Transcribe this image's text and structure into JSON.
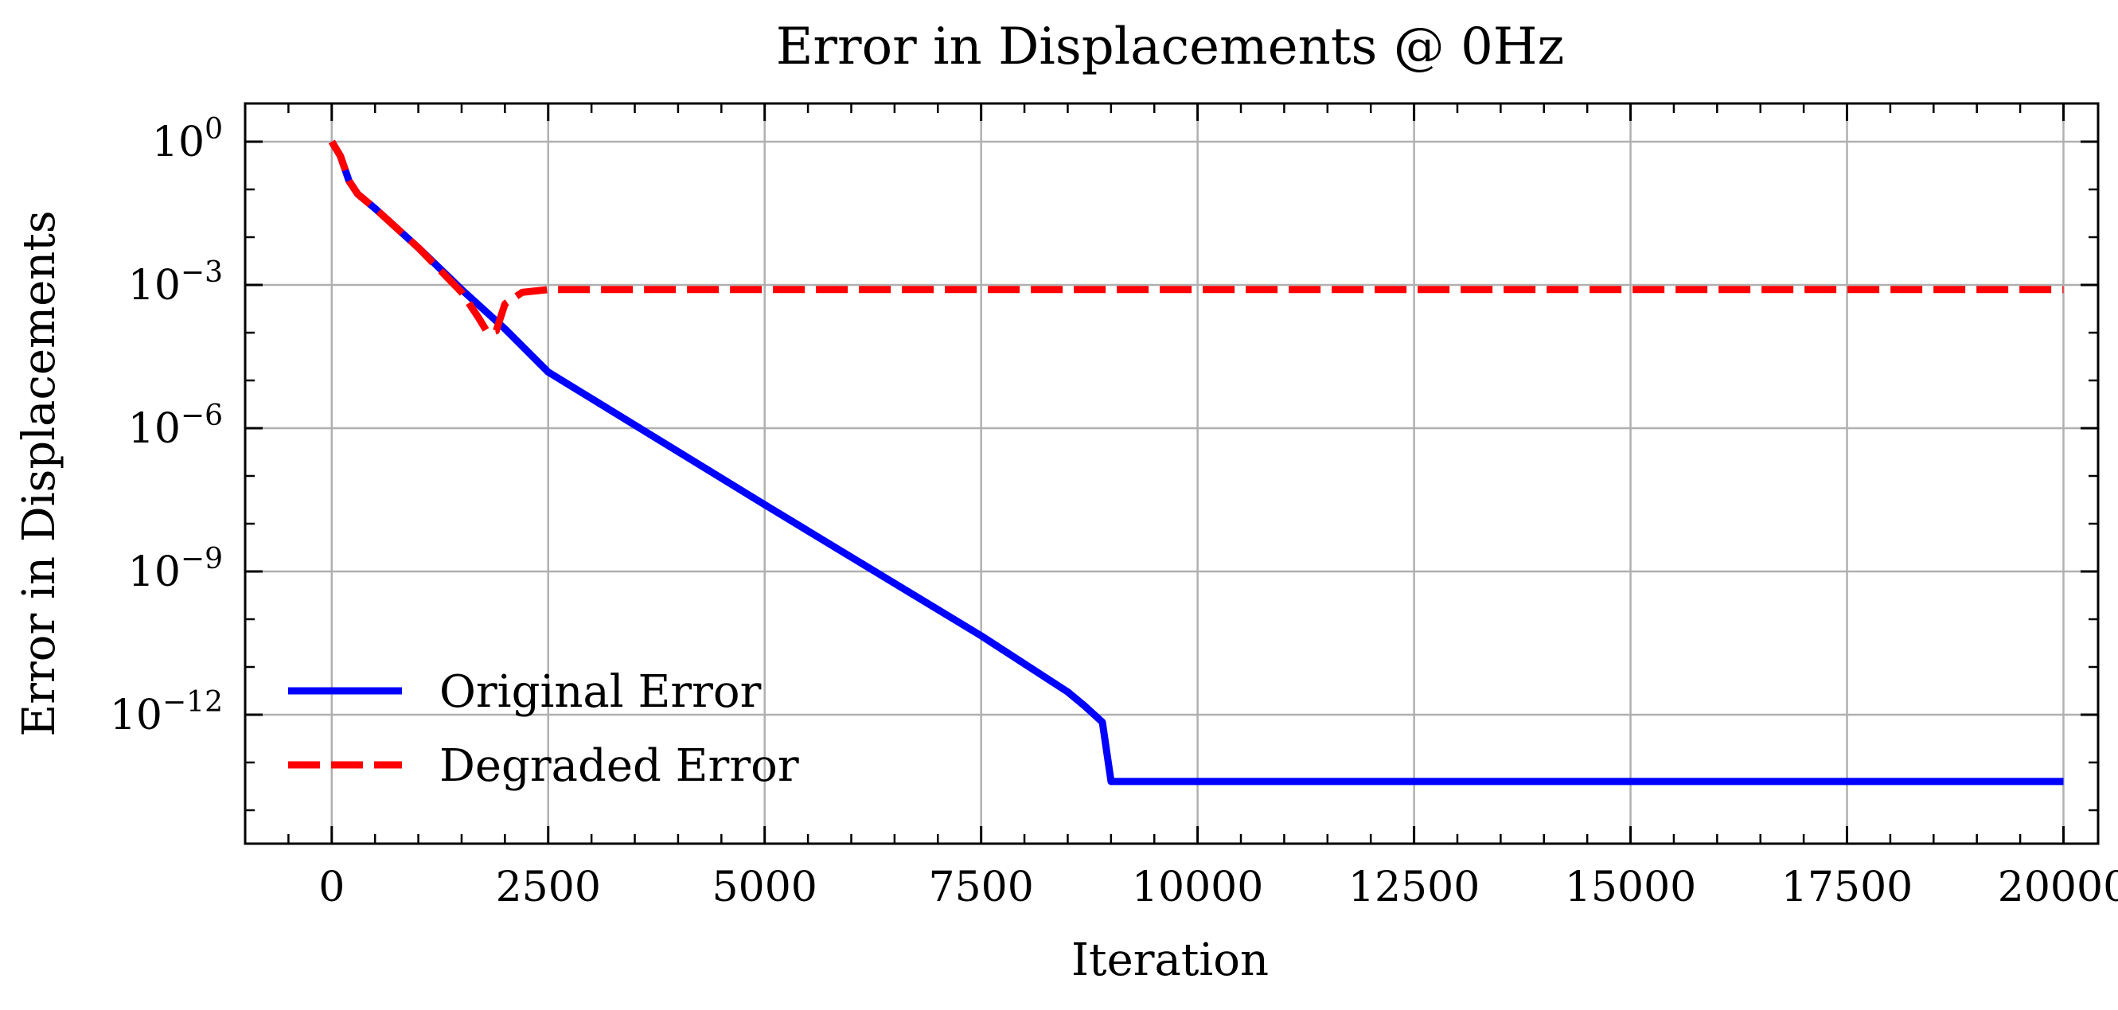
{
  "chart_data": {
    "type": "line",
    "title": "Error in Displacements @ 0Hz",
    "xlabel": "Iteration",
    "ylabel": "Error in Displacements",
    "xlim": [
      -1000,
      20400
    ],
    "ylim_log10": [
      -14.7,
      0.8
    ],
    "yscale": "log",
    "grid": true,
    "legend_position": "lower-left",
    "x_ticks": [
      0,
      2500,
      5000,
      7500,
      10000,
      12500,
      15000,
      17500,
      20000
    ],
    "x_tick_labels": [
      "0",
      "2500",
      "5000",
      "7500",
      "10000",
      "12500",
      "15000",
      "17500",
      "20000"
    ],
    "y_ticks_log10": [
      0,
      -3,
      -6,
      -9,
      -12
    ],
    "y_tick_labels": [
      {
        "base": "10",
        "exp": "0"
      },
      {
        "base": "10",
        "exp": "−3"
      },
      {
        "base": "10",
        "exp": "−6"
      },
      {
        "base": "10",
        "exp": "−9"
      },
      {
        "base": "10",
        "exp": "−12"
      }
    ],
    "series": [
      {
        "name": "Original Error",
        "color": "#0000ff",
        "style": "solid",
        "x": [
          0,
          100,
          200,
          300,
          500,
          1000,
          1500,
          2000,
          2500,
          5000,
          7500,
          8500,
          8700,
          8900,
          9000,
          10000,
          15000,
          20000
        ],
        "y": [
          1,
          0.5,
          0.15,
          0.08,
          0.04,
          0.006,
          0.0008,
          0.00012,
          1.5e-05,
          2.5e-08,
          4.5e-11,
          3e-12,
          1.5e-12,
          7e-13,
          4e-14,
          4e-14,
          4e-14,
          4e-14
        ]
      },
      {
        "name": "Degraded Error",
        "color": "#ff0000",
        "style": "dashed",
        "x": [
          0,
          100,
          200,
          300,
          500,
          1000,
          1500,
          1700,
          1800,
          1900,
          2000,
          2200,
          2500,
          3000,
          5000,
          10000,
          15000,
          20000
        ],
        "y": [
          1,
          0.5,
          0.15,
          0.08,
          0.04,
          0.006,
          0.0007,
          0.0002,
          0.0001,
          0.00011,
          0.0004,
          0.0007,
          0.0008,
          0.0008,
          0.0008,
          0.0008,
          0.0008,
          0.0008
        ]
      }
    ]
  }
}
